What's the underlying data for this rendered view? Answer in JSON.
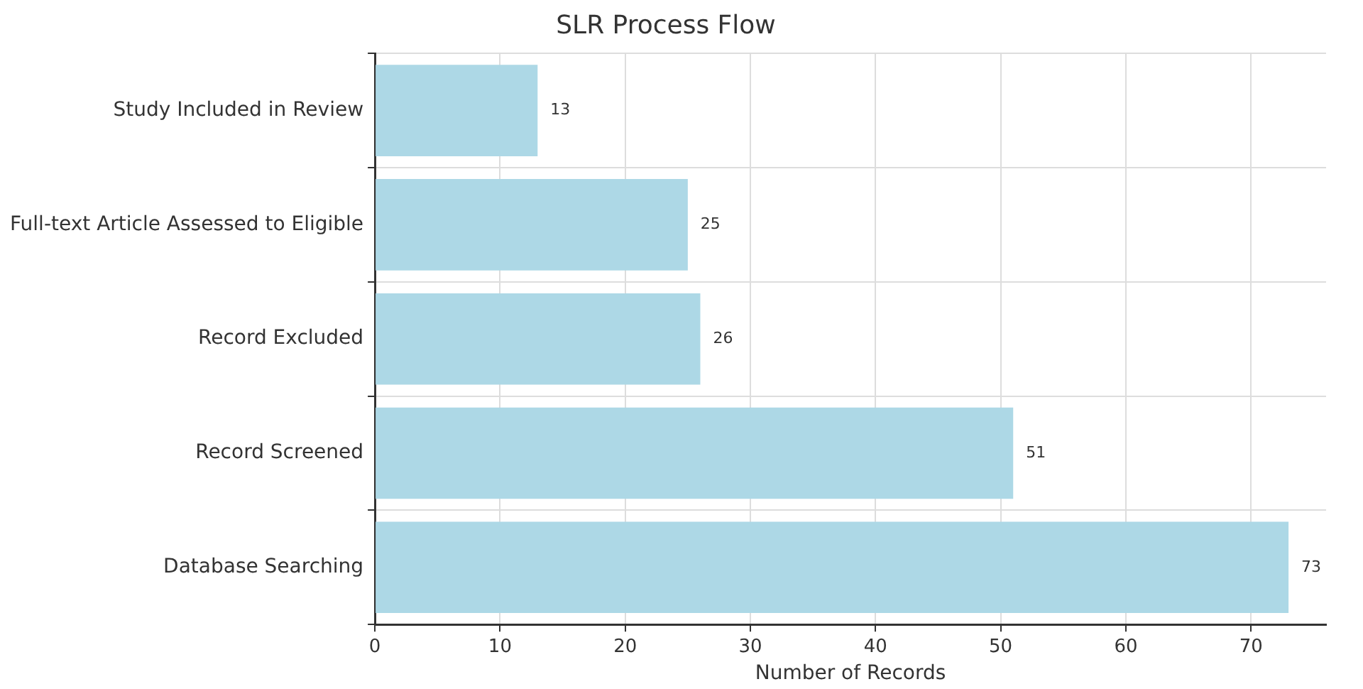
{
  "chart_data": {
    "type": "bar",
    "orientation": "horizontal",
    "title": "SLR Process Flow",
    "xlabel": "Number of Records",
    "categories": [
      "Study Included in Review",
      "Full-text Article Assessed to Eligible",
      "Record Excluded",
      "Record Screened",
      "Database Searching"
    ],
    "values": [
      13,
      25,
      26,
      51,
      73
    ],
    "color": "#add8e6",
    "xlim": [
      0,
      76
    ],
    "xticks": [
      0,
      10,
      20,
      30,
      40,
      50,
      60,
      70
    ],
    "grid": true,
    "data_labels": true
  }
}
